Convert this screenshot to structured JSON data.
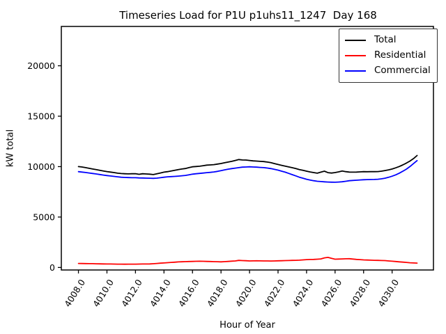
{
  "chart_data": {
    "type": "line",
    "title": "Timeseries Load for P1U p1uhs11_1247  Day 168",
    "xlabel": "Hour of Year",
    "ylabel": "kW total",
    "xlim": [
      4006.8,
      4032.9
    ],
    "ylim": [
      -250,
      23900
    ],
    "grid": false,
    "legend": {
      "position": "upper right",
      "entries": [
        "Total",
        "Residential",
        "Commercial"
      ]
    },
    "xticks": {
      "values": [
        4008,
        4010,
        4012,
        4014,
        4016,
        4018,
        4020,
        4022,
        4024,
        4026,
        4028,
        4030
      ],
      "labels": [
        "4008.0",
        "4010.0",
        "4012.0",
        "4014.0",
        "4016.0",
        "4018.0",
        "4020.0",
        "4022.0",
        "4024.0",
        "4026.0",
        "4028.0",
        "4030.0"
      ]
    },
    "yticks": {
      "values": [
        0,
        5000,
        10000,
        15000,
        20000
      ],
      "labels": [
        "0",
        "5000",
        "10000",
        "15000",
        "20000"
      ]
    },
    "x": [
      4008.0,
      4008.25,
      4008.5,
      4008.75,
      4009.0,
      4009.25,
      4009.5,
      4009.75,
      4010.0,
      4010.25,
      4010.5,
      4010.75,
      4011.0,
      4011.25,
      4011.5,
      4011.75,
      4012.0,
      4012.25,
      4012.5,
      4012.75,
      4013.0,
      4013.25,
      4013.5,
      4013.75,
      4014.0,
      4014.25,
      4014.5,
      4014.75,
      4015.0,
      4015.25,
      4015.5,
      4015.75,
      4016.0,
      4016.25,
      4016.5,
      4016.75,
      4017.0,
      4017.25,
      4017.5,
      4017.75,
      4018.0,
      4018.25,
      4018.5,
      4018.75,
      4019.0,
      4019.25,
      4019.5,
      4019.75,
      4020.0,
      4020.25,
      4020.5,
      4020.75,
      4021.0,
      4021.25,
      4021.5,
      4021.75,
      4022.0,
      4022.25,
      4022.5,
      4022.75,
      4023.0,
      4023.25,
      4023.5,
      4023.75,
      4024.0,
      4024.25,
      4024.5,
      4024.75,
      4025.0,
      4025.25,
      4025.5,
      4025.75,
      4026.0,
      4026.25,
      4026.5,
      4026.75,
      4027.0,
      4027.25,
      4027.5,
      4027.75,
      4028.0,
      4028.25,
      4028.5,
      4028.75,
      4029.0,
      4029.25,
      4029.5,
      4029.75,
      4030.0,
      4030.25,
      4030.5,
      4030.75,
      4031.0,
      4031.25,
      4031.5,
      4031.75
    ],
    "series": [
      {
        "name": "Total",
        "color": "#000000",
        "values": [
          10000,
          9960,
          9900,
          9830,
          9760,
          9700,
          9640,
          9570,
          9510,
          9460,
          9410,
          9350,
          9310,
          9290,
          9280,
          9290,
          9300,
          9240,
          9290,
          9270,
          9250,
          9210,
          9290,
          9370,
          9450,
          9500,
          9560,
          9630,
          9700,
          9760,
          9810,
          9900,
          9980,
          10010,
          10040,
          10090,
          10150,
          10170,
          10200,
          10250,
          10310,
          10380,
          10450,
          10520,
          10610,
          10700,
          10660,
          10650,
          10610,
          10570,
          10550,
          10520,
          10500,
          10450,
          10390,
          10300,
          10210,
          10130,
          10050,
          9970,
          9890,
          9800,
          9710,
          9630,
          9550,
          9470,
          9410,
          9350,
          9450,
          9550,
          9400,
          9360,
          9410,
          9480,
          9560,
          9500,
          9460,
          9450,
          9460,
          9480,
          9500,
          9490,
          9500,
          9500,
          9510,
          9550,
          9610,
          9680,
          9760,
          9880,
          10010,
          10170,
          10350,
          10550,
          10800,
          11100
        ]
      },
      {
        "name": "Residential",
        "color": "#ff0000",
        "values": [
          400,
          390,
          385,
          380,
          375,
          365,
          360,
          350,
          345,
          340,
          335,
          330,
          330,
          325,
          330,
          330,
          330,
          335,
          340,
          345,
          350,
          370,
          400,
          425,
          450,
          475,
          500,
          525,
          550,
          565,
          580,
          590,
          600,
          610,
          620,
          610,
          600,
          590,
          580,
          570,
          560,
          580,
          600,
          625,
          650,
          700,
          680,
          665,
          650,
          655,
          660,
          655,
          650,
          645,
          640,
          650,
          660,
          670,
          680,
          690,
          700,
          710,
          720,
          750,
          780,
          790,
          800,
          820,
          850,
          950,
          1000,
          900,
          820,
          835,
          850,
          860,
          870,
          835,
          800,
          775,
          750,
          735,
          720,
          710,
          700,
          690,
          680,
          650,
          620,
          590,
          560,
          530,
          500,
          470,
          450,
          430
        ]
      },
      {
        "name": "Commercial",
        "color": "#0000ff",
        "values": [
          9500,
          9460,
          9420,
          9370,
          9320,
          9270,
          9220,
          9160,
          9110,
          9070,
          9030,
          8990,
          8950,
          8930,
          8910,
          8900,
          8900,
          8880,
          8870,
          8860,
          8850,
          8840,
          8860,
          8900,
          8950,
          8990,
          9010,
          9030,
          9060,
          9090,
          9130,
          9190,
          9250,
          9290,
          9330,
          9360,
          9400,
          9430,
          9470,
          9530,
          9600,
          9680,
          9750,
          9800,
          9850,
          9900,
          9950,
          9960,
          9980,
          9960,
          9950,
          9920,
          9900,
          9860,
          9800,
          9730,
          9650,
          9550,
          9450,
          9330,
          9200,
          9080,
          8950,
          8850,
          8750,
          8670,
          8600,
          8550,
          8520,
          8490,
          8470,
          8460,
          8450,
          8470,
          8500,
          8550,
          8600,
          8630,
          8650,
          8680,
          8700,
          8710,
          8720,
          8730,
          8750,
          8790,
          8850,
          8940,
          9050,
          9180,
          9350,
          9540,
          9750,
          10000,
          10300,
          10600
        ]
      }
    ]
  }
}
